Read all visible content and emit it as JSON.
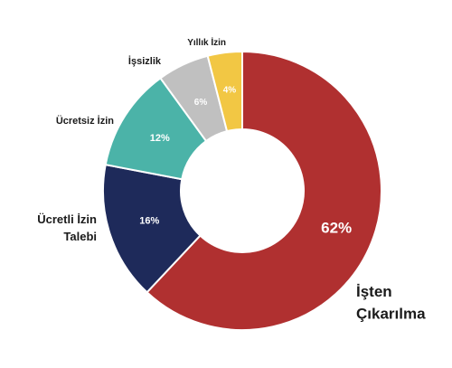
{
  "chart_data": {
    "type": "pie",
    "donut": true,
    "legend": "none",
    "slices": [
      {
        "label": "İşten Çıkarılma",
        "value": 62,
        "display": "62%",
        "color": "#b03030"
      },
      {
        "label": "Ücretli İzin Talebi",
        "value": 16,
        "display": "16%",
        "color": "#1e2a5a"
      },
      {
        "label": "Ücretsiz İzin",
        "value": 12,
        "display": "12%",
        "color": "#4bb3a8"
      },
      {
        "label": "İşsizlik",
        "value": 6,
        "display": "6%",
        "color": "#c0c0c0"
      },
      {
        "label": "Yıllık İzin",
        "value": 4,
        "display": "4%",
        "color": "#f2c744"
      }
    ]
  }
}
